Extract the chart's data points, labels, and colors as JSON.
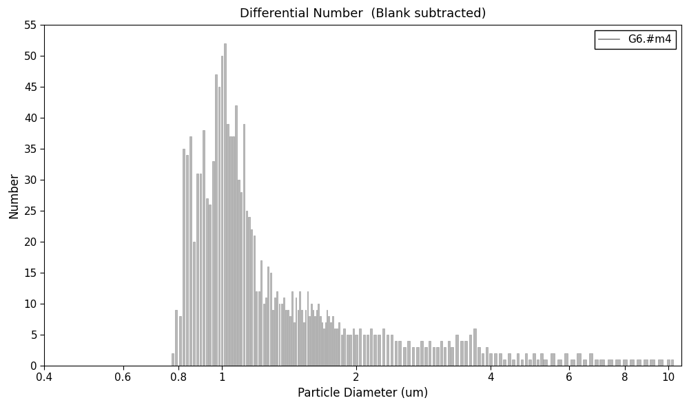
{
  "title": "Differential Number  (Blank subtracted)",
  "xlabel": "Particle Diameter (um)",
  "ylabel": "Number",
  "legend_label": "G6.#m4",
  "xlim": [
    0.4,
    10.7
  ],
  "ylim": [
    0,
    55
  ],
  "yticks": [
    0,
    5,
    10,
    15,
    20,
    25,
    30,
    35,
    40,
    45,
    50,
    55
  ],
  "xtick_positions": [
    0.4,
    0.6,
    0.8,
    1.0,
    2.0,
    4.0,
    6.0,
    8.0,
    10.0
  ],
  "xtick_labels": [
    "0.4",
    "0.6",
    "0.8",
    "1",
    "2",
    "4",
    "6",
    "8",
    "10"
  ],
  "bar_color": "#b8b8b8",
  "bar_edge_color": "#909090",
  "background_color": "#ffffff",
  "title_fontsize": 13,
  "axis_fontsize": 12,
  "tick_fontsize": 11,
  "bars": [
    [
      0.745,
      0.0
    ],
    [
      0.76,
      0.0
    ],
    [
      0.775,
      2.0
    ],
    [
      0.79,
      9.0
    ],
    [
      0.805,
      8.0
    ],
    [
      0.82,
      35.0
    ],
    [
      0.835,
      34.0
    ],
    [
      0.85,
      37.0
    ],
    [
      0.865,
      20.0
    ],
    [
      0.88,
      31.0
    ],
    [
      0.895,
      31.0
    ],
    [
      0.91,
      38.0
    ],
    [
      0.925,
      27.0
    ],
    [
      0.94,
      26.0
    ],
    [
      0.955,
      33.0
    ],
    [
      0.97,
      47.0
    ],
    [
      0.985,
      45.0
    ],
    [
      1.0,
      50.0
    ],
    [
      1.015,
      52.0
    ],
    [
      1.03,
      39.0
    ],
    [
      1.045,
      37.0
    ],
    [
      1.06,
      37.0
    ],
    [
      1.075,
      42.0
    ],
    [
      1.09,
      30.0
    ],
    [
      1.105,
      28.0
    ],
    [
      1.12,
      39.0
    ],
    [
      1.135,
      25.0
    ],
    [
      1.15,
      24.0
    ],
    [
      1.165,
      22.0
    ],
    [
      1.18,
      21.0
    ],
    [
      1.195,
      12.0
    ],
    [
      1.21,
      12.0
    ],
    [
      1.225,
      17.0
    ],
    [
      1.24,
      10.0
    ],
    [
      1.255,
      11.0
    ],
    [
      1.27,
      16.0
    ],
    [
      1.285,
      15.0
    ],
    [
      1.3,
      9.0
    ],
    [
      1.315,
      11.0
    ],
    [
      1.33,
      12.0
    ],
    [
      1.345,
      10.0
    ],
    [
      1.36,
      10.0
    ],
    [
      1.375,
      11.0
    ],
    [
      1.39,
      9.0
    ],
    [
      1.405,
      9.0
    ],
    [
      1.42,
      8.0
    ],
    [
      1.435,
      12.0
    ],
    [
      1.45,
      7.0
    ],
    [
      1.465,
      11.0
    ],
    [
      1.48,
      9.0
    ],
    [
      1.495,
      12.0
    ],
    [
      1.51,
      9.0
    ],
    [
      1.525,
      7.0
    ],
    [
      1.54,
      9.0
    ],
    [
      1.555,
      12.0
    ],
    [
      1.57,
      8.0
    ],
    [
      1.585,
      10.0
    ],
    [
      1.6,
      9.0
    ],
    [
      1.615,
      8.0
    ],
    [
      1.63,
      9.0
    ],
    [
      1.645,
      10.0
    ],
    [
      1.66,
      8.0
    ],
    [
      1.675,
      7.0
    ],
    [
      1.69,
      6.0
    ],
    [
      1.705,
      7.0
    ],
    [
      1.72,
      9.0
    ],
    [
      1.735,
      8.0
    ],
    [
      1.75,
      7.0
    ],
    [
      1.77,
      8.0
    ],
    [
      1.79,
      6.0
    ],
    [
      1.81,
      6.0
    ],
    [
      1.83,
      7.0
    ],
    [
      1.855,
      5.0
    ],
    [
      1.88,
      6.0
    ],
    [
      1.91,
      5.0
    ],
    [
      1.94,
      5.0
    ],
    [
      1.97,
      6.0
    ],
    [
      2.0,
      5.0
    ],
    [
      2.04,
      6.0
    ],
    [
      2.08,
      5.0
    ],
    [
      2.12,
      5.0
    ],
    [
      2.16,
      6.0
    ],
    [
      2.2,
      5.0
    ],
    [
      2.25,
      5.0
    ],
    [
      2.3,
      6.0
    ],
    [
      2.35,
      5.0
    ],
    [
      2.4,
      5.0
    ],
    [
      2.45,
      4.0
    ],
    [
      2.5,
      4.0
    ],
    [
      2.56,
      3.0
    ],
    [
      2.62,
      4.0
    ],
    [
      2.68,
      3.0
    ],
    [
      2.74,
      3.0
    ],
    [
      2.8,
      4.0
    ],
    [
      2.86,
      3.0
    ],
    [
      2.92,
      4.0
    ],
    [
      2.98,
      3.0
    ],
    [
      3.04,
      3.0
    ],
    [
      3.1,
      4.0
    ],
    [
      3.16,
      3.0
    ],
    [
      3.22,
      4.0
    ],
    [
      3.28,
      3.0
    ],
    [
      3.36,
      5.0
    ],
    [
      3.44,
      4.0
    ],
    [
      3.52,
      4.0
    ],
    [
      3.6,
      5.0
    ],
    [
      3.68,
      6.0
    ],
    [
      3.76,
      3.0
    ],
    [
      3.84,
      2.0
    ],
    [
      3.92,
      3.0
    ],
    [
      4.0,
      2.0
    ],
    [
      4.1,
      2.0
    ],
    [
      4.2,
      2.0
    ],
    [
      4.3,
      1.0
    ],
    [
      4.4,
      2.0
    ],
    [
      4.5,
      1.0
    ],
    [
      4.6,
      2.0
    ],
    [
      4.7,
      1.0
    ],
    [
      4.8,
      2.0
    ],
    [
      4.9,
      1.0
    ],
    [
      5.0,
      2.0
    ],
    [
      5.1,
      1.0
    ],
    [
      5.2,
      2.0
    ],
    [
      5.3,
      1.0
    ],
    [
      5.5,
      2.0
    ],
    [
      5.7,
      1.0
    ],
    [
      5.9,
      2.0
    ],
    [
      6.1,
      1.0
    ],
    [
      6.3,
      2.0
    ],
    [
      6.5,
      1.0
    ],
    [
      6.7,
      2.0
    ],
    [
      6.9,
      1.0
    ],
    [
      7.1,
      1.0
    ],
    [
      7.4,
      1.0
    ],
    [
      7.7,
      1.0
    ],
    [
      8.0,
      1.0
    ],
    [
      8.3,
      1.0
    ],
    [
      8.6,
      1.0
    ],
    [
      8.9,
      1.0
    ],
    [
      9.2,
      1.0
    ],
    [
      9.6,
      1.0
    ],
    [
      10.0,
      1.0
    ],
    [
      10.2,
      1.0
    ]
  ]
}
